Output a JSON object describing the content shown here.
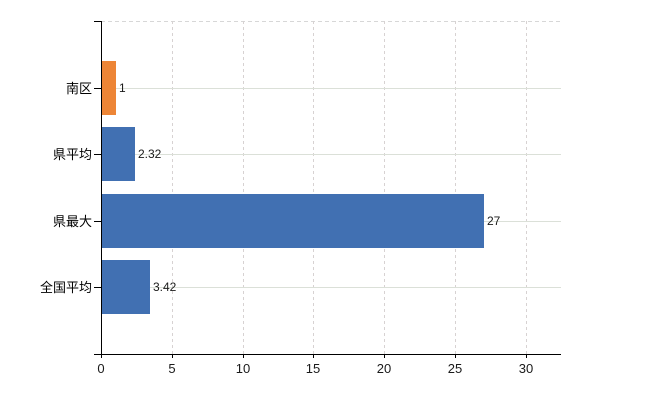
{
  "chart_data": {
    "type": "bar",
    "orientation": "horizontal",
    "title": "",
    "categories": [
      "南区",
      "県平均",
      "県最大",
      "全国平均"
    ],
    "values": [
      1,
      2.32,
      27,
      3.42
    ],
    "value_labels": [
      "1",
      "2.32",
      "27",
      "3.42"
    ],
    "bar_colors": [
      "#ed8536",
      "#4170b2",
      "#4170b2",
      "#4170b2"
    ],
    "x_ticks": [
      0,
      5,
      10,
      15,
      20,
      25,
      30
    ],
    "x_tick_labels": [
      "0",
      "5",
      "10",
      "15",
      "20",
      "25",
      "30"
    ],
    "xlim": [
      0,
      32.5
    ],
    "grid": {
      "vertical": "dashed",
      "horizontal": "solid",
      "vertical_color": "#d7d2d2",
      "horizontal_color": "#dbe0d8",
      "top_border": "dashed"
    },
    "legend": "none",
    "background": "#ffffff",
    "axis_color": "#000000"
  }
}
